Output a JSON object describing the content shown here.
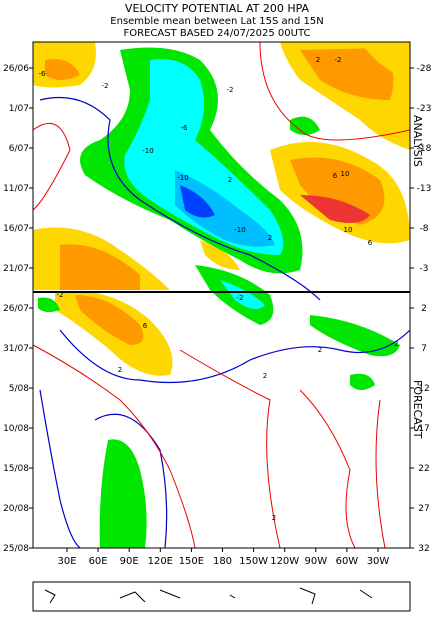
{
  "header": {
    "lines": [
      "VELOCITY POTENTIAL AT 200 HPA",
      "Ensemble mean between  Lat 15S and 15N",
      "FORECAST  BASED 24/07/2025 00UTC"
    ]
  },
  "axes": {
    "left_ticks": [
      "26/06",
      "1/07",
      "6/07",
      "11/07",
      "16/07",
      "21/07",
      "26/07",
      "31/07",
      "5/08",
      "10/08",
      "15/08",
      "20/08",
      "25/08"
    ],
    "right_ticks": [
      "-28",
      "-23",
      "-18",
      "-13",
      "-8",
      "-3",
      "2",
      "7",
      "12",
      "17",
      "22",
      "27",
      "32"
    ],
    "bottom_ticks": [
      "30E",
      "60E",
      "90E",
      "120E",
      "150E",
      "180",
      "150W",
      "120W",
      "90W",
      "60W",
      "30W"
    ]
  },
  "side_labels": [
    "ANALYSIS",
    "FORECAST"
  ],
  "contour_labels": [
    "-6",
    "-2",
    "-2",
    "-10",
    "-10",
    "-10",
    "-6",
    "2",
    "6",
    "10",
    "10",
    "6",
    "2",
    "-2",
    "-2",
    "2",
    "6",
    "2",
    "2",
    "2",
    "-2",
    "-2",
    "2"
  ]
}
